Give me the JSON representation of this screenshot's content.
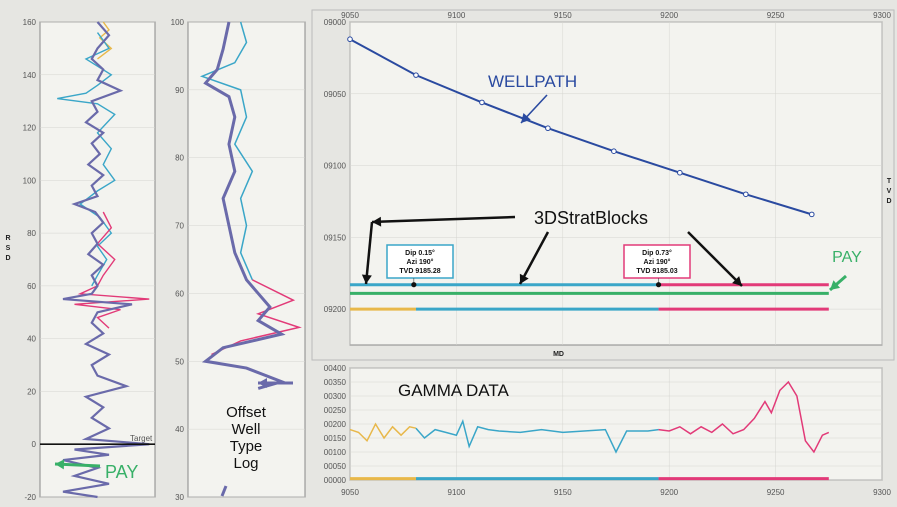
{
  "chart_data": [
    {
      "id": "rsd_log",
      "type": "line",
      "ylabel": "R S D",
      "ylim": [
        -20,
        160
      ],
      "yticks": [
        160,
        140,
        120,
        100,
        80,
        60,
        40,
        20,
        0,
        -20
      ],
      "target_label": "Target",
      "pay_label": "PAY",
      "series": [
        {
          "color": "#e8b84a",
          "points": [
            [
              0.55,
              160
            ],
            [
              0.6,
              157
            ],
            [
              0.52,
              154
            ],
            [
              0.62,
              150
            ],
            [
              0.5,
              146
            ]
          ]
        },
        {
          "color": "#3aa6c8",
          "points": [
            [
              0.5,
              156
            ],
            [
              0.6,
              150
            ],
            [
              0.4,
              146
            ],
            [
              0.62,
              140
            ],
            [
              0.5,
              136
            ],
            [
              0.4,
              133
            ],
            [
              0.15,
              131
            ],
            [
              0.5,
              129
            ],
            [
              0.65,
              125
            ],
            [
              0.5,
              118
            ],
            [
              0.62,
              112
            ],
            [
              0.55,
              106
            ],
            [
              0.65,
              100
            ],
            [
              0.5,
              96
            ],
            [
              0.35,
              91
            ],
            [
              0.52,
              86
            ],
            [
              0.62,
              80
            ],
            [
              0.5,
              75
            ],
            [
              0.58,
              70
            ],
            [
              0.5,
              64
            ],
            [
              0.45,
              60
            ]
          ]
        },
        {
          "color": "#e23a78",
          "points": [
            [
              0.55,
              88
            ],
            [
              0.62,
              82
            ],
            [
              0.5,
              76
            ],
            [
              0.65,
              70
            ],
            [
              0.55,
              64
            ],
            [
              0.5,
              60
            ],
            [
              0.35,
              57
            ],
            [
              0.95,
              55
            ],
            [
              0.3,
              53
            ],
            [
              0.7,
              51
            ],
            [
              0.5,
              48
            ],
            [
              0.6,
              44
            ]
          ]
        },
        {
          "color": "#6a6aaa",
          "points": [
            [
              0.5,
              160
            ],
            [
              0.6,
              155
            ],
            [
              0.5,
              150
            ],
            [
              0.45,
              146
            ],
            [
              0.55,
              142
            ],
            [
              0.5,
              138
            ],
            [
              0.7,
              134
            ],
            [
              0.45,
              130
            ],
            [
              0.5,
              126
            ],
            [
              0.4,
              122
            ],
            [
              0.55,
              118
            ],
            [
              0.45,
              114
            ],
            [
              0.52,
              110
            ],
            [
              0.42,
              106
            ],
            [
              0.55,
              102
            ],
            [
              0.45,
              98
            ],
            [
              0.5,
              94
            ],
            [
              0.3,
              91
            ],
            [
              0.48,
              88
            ],
            [
              0.55,
              84
            ],
            [
              0.45,
              80
            ],
            [
              0.5,
              76
            ],
            [
              0.42,
              72
            ],
            [
              0.55,
              68
            ],
            [
              0.45,
              64
            ],
            [
              0.5,
              60
            ],
            [
              0.45,
              57
            ],
            [
              0.2,
              55
            ],
            [
              0.8,
              53
            ],
            [
              0.5,
              50
            ],
            [
              0.45,
              46
            ],
            [
              0.55,
              42
            ],
            [
              0.4,
              38
            ],
            [
              0.6,
              34
            ],
            [
              0.45,
              30
            ],
            [
              0.5,
              26
            ],
            [
              0.75,
              22
            ],
            [
              0.4,
              18
            ],
            [
              0.55,
              14
            ],
            [
              0.45,
              10
            ],
            [
              0.6,
              6
            ],
            [
              0.4,
              2
            ],
            [
              0.95,
              0
            ],
            [
              0.3,
              -2
            ],
            [
              0.6,
              -4
            ],
            [
              0.2,
              -6
            ],
            [
              0.5,
              -9
            ],
            [
              0.3,
              -12
            ],
            [
              0.6,
              -15
            ],
            [
              0.2,
              -18
            ],
            [
              0.5,
              -20
            ]
          ]
        }
      ]
    },
    {
      "id": "offset_well_type_log",
      "type": "line",
      "ylim": [
        30,
        100
      ],
      "yticks": [
        100,
        90,
        80,
        70,
        60,
        50,
        40,
        30
      ],
      "annotation": [
        "Offset",
        "Well",
        "Type",
        "Log"
      ],
      "series": [
        {
          "color": "#3aa6c8",
          "points": [
            [
              0.45,
              100
            ],
            [
              0.5,
              97
            ],
            [
              0.4,
              94
            ],
            [
              0.12,
              92
            ],
            [
              0.45,
              90
            ],
            [
              0.5,
              86
            ],
            [
              0.4,
              82
            ],
            [
              0.55,
              78
            ],
            [
              0.45,
              74
            ],
            [
              0.5,
              70
            ],
            [
              0.45,
              66
            ],
            [
              0.55,
              62
            ]
          ]
        },
        {
          "color": "#e23a78",
          "points": [
            [
              0.55,
              62
            ],
            [
              0.9,
              59
            ],
            [
              0.6,
              57
            ],
            [
              0.95,
              55
            ],
            [
              0.45,
              53
            ],
            [
              0.2,
              51
            ]
          ]
        },
        {
          "color": "#6a6aaa",
          "points": [
            [
              0.35,
              100
            ],
            [
              0.3,
              96
            ],
            [
              0.25,
              93
            ],
            [
              0.15,
              91
            ],
            [
              0.35,
              89
            ],
            [
              0.4,
              86
            ],
            [
              0.35,
              82
            ],
            [
              0.4,
              78
            ],
            [
              0.3,
              74
            ],
            [
              0.35,
              70
            ],
            [
              0.4,
              66
            ],
            [
              0.5,
              62
            ],
            [
              0.6,
              60
            ],
            [
              0.7,
              58
            ],
            [
              0.6,
              56
            ],
            [
              0.8,
              54
            ],
            [
              0.3,
              52
            ],
            [
              0.15,
              50
            ],
            [
              0.5,
              49
            ],
            [
              0.8,
              47
            ],
            [
              0.6,
              46
            ]
          ]
        }
      ]
    },
    {
      "id": "wellpath",
      "type": "line",
      "title": "WELLPATH",
      "xlabel": "MD",
      "ylabel": "T V D",
      "xlim": [
        9050,
        9300
      ],
      "xticks": [
        9050,
        9100,
        9150,
        9200,
        9250,
        9300
      ],
      "ylim": [
        9000,
        9225
      ],
      "yticks": [
        "09000",
        "09050",
        "09100",
        "09150",
        "09200"
      ],
      "series": [
        {
          "name": "WELLPATH",
          "color": "#2a4aa0",
          "x": [
            9050,
            9081,
            9112,
            9143,
            9174,
            9205,
            9236,
            9267
          ],
          "y": [
            9012,
            9037,
            9056,
            9074,
            9090,
            9105,
            9120,
            9134
          ]
        }
      ],
      "strat_lines": [
        {
          "color": "#3aa6c8",
          "y": 9183,
          "from": 9050,
          "to": 9195
        },
        {
          "color": "#e23a78",
          "y": 9183,
          "from": 9195,
          "to": 9275
        },
        {
          "color": "#38b068",
          "y": 9189,
          "from": 9050,
          "to": 9275
        },
        {
          "color": "#e8b84a",
          "y": 9200,
          "from": 9050,
          "to": 9081
        },
        {
          "color": "#3aa6c8",
          "y": 9200,
          "from": 9081,
          "to": 9195
        },
        {
          "color": "#e23a78",
          "y": 9200,
          "from": 9195,
          "to": 9275
        }
      ],
      "strat_label": "3DStratBlocks",
      "pay_label": "PAY",
      "blocks": [
        {
          "lines": [
            "Dip 0.15°",
            "Azi 190°",
            "TVD 9185.28"
          ],
          "border": "#3aa6c8",
          "dot_md": 9080,
          "dot_tvd": 9183
        },
        {
          "lines": [
            "Dip 0.73°",
            "Azi 190°",
            "TVD 9185.03"
          ],
          "border": "#e23a78",
          "dot_md": 9195,
          "dot_tvd": 9183
        }
      ]
    },
    {
      "id": "gamma",
      "type": "line",
      "title": "GAMMA DATA",
      "xlim": [
        9050,
        9300
      ],
      "xticks": [
        9050,
        9100,
        9150,
        9200,
        9250,
        9300
      ],
      "ylim": [
        0,
        400
      ],
      "yticks": [
        "00400",
        "00350",
        "00300",
        "00250",
        "00200",
        "00150",
        "00100",
        "00050",
        "00000"
      ],
      "series": [
        {
          "color": "#e8b84a",
          "points": [
            [
              9050,
              180
            ],
            [
              9054,
              170
            ],
            [
              9058,
              140
            ],
            [
              9062,
              200
            ],
            [
              9066,
              150
            ],
            [
              9070,
              190
            ],
            [
              9074,
              160
            ],
            [
              9078,
              190
            ],
            [
              9081,
              185
            ]
          ]
        },
        {
          "color": "#3aa6c8",
          "points": [
            [
              9081,
              185
            ],
            [
              9085,
              150
            ],
            [
              9090,
              180
            ],
            [
              9095,
              170
            ],
            [
              9100,
              160
            ],
            [
              9103,
              210
            ],
            [
              9106,
              120
            ],
            [
              9110,
              190
            ],
            [
              9115,
              180
            ],
            [
              9120,
              175
            ],
            [
              9130,
              170
            ],
            [
              9140,
              180
            ],
            [
              9150,
              170
            ],
            [
              9160,
              175
            ],
            [
              9170,
              180
            ],
            [
              9175,
              100
            ],
            [
              9180,
              175
            ],
            [
              9190,
              175
            ],
            [
              9195,
              180
            ]
          ]
        },
        {
          "color": "#e23a78",
          "points": [
            [
              9195,
              180
            ],
            [
              9200,
              175
            ],
            [
              9205,
              190
            ],
            [
              9210,
              165
            ],
            [
              9215,
              190
            ],
            [
              9220,
              170
            ],
            [
              9225,
              200
            ],
            [
              9230,
              165
            ],
            [
              9235,
              180
            ],
            [
              9240,
              220
            ],
            [
              9245,
              280
            ],
            [
              9248,
              240
            ],
            [
              9252,
              320
            ],
            [
              9256,
              350
            ],
            [
              9260,
              300
            ],
            [
              9264,
              140
            ],
            [
              9268,
              100
            ],
            [
              9272,
              160
            ],
            [
              9275,
              170
            ]
          ]
        },
        {
          "color": "#3aa6c8",
          "points": [
            [
              9081,
              5
            ],
            [
              9195,
              5
            ]
          ]
        },
        {
          "color": "#e23a78",
          "points": [
            [
              9195,
              5
            ],
            [
              9275,
              5
            ]
          ]
        },
        {
          "color": "#e8b84a",
          "points": [
            [
              9050,
              5
            ],
            [
              9081,
              5
            ]
          ]
        }
      ]
    }
  ]
}
